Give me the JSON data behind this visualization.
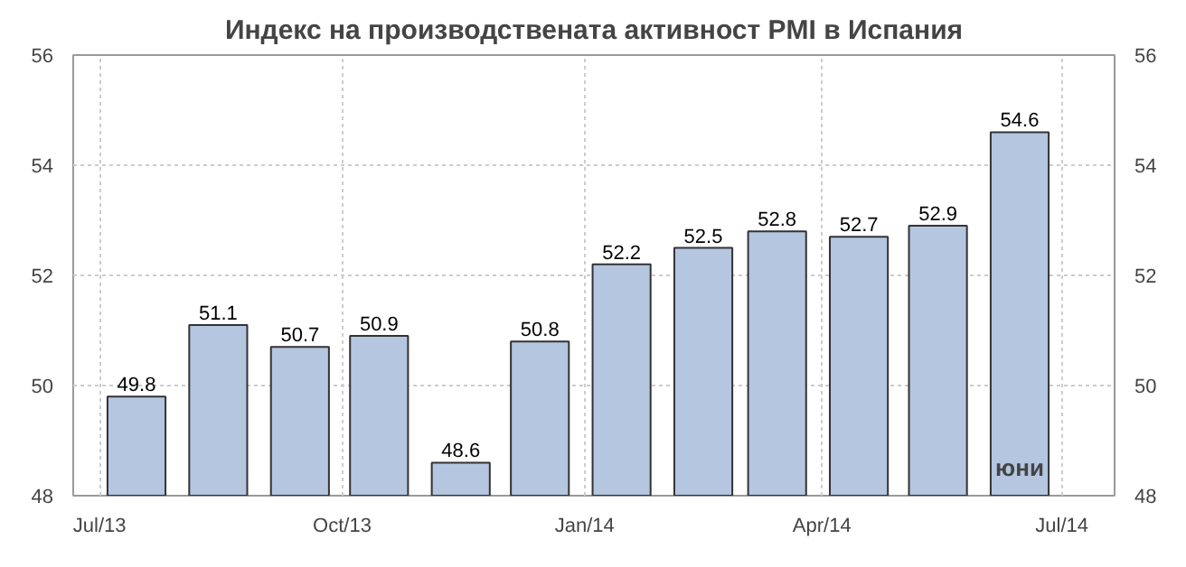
{
  "chart_data": {
    "type": "bar",
    "title": "Индекс на производствената активност PMI в Испания",
    "x": [
      "2013-07-15",
      "2013-08-15",
      "2013-09-15",
      "2013-10-15",
      "2013-11-15",
      "2013-12-15",
      "2014-01-15",
      "2014-02-15",
      "2014-03-15",
      "2014-04-15",
      "2014-05-15",
      "2014-06-15"
    ],
    "values": [
      49.8,
      51.1,
      50.7,
      50.9,
      48.6,
      50.8,
      52.2,
      52.5,
      52.8,
      52.7,
      52.9,
      54.6
    ],
    "color": "#b4c6e0",
    "data_labels": true,
    "xlim": [
      "2013-06-21",
      "2014-07-21"
    ],
    "xticks": [
      {
        "value": "2013-07-01",
        "label": "Jul/13"
      },
      {
        "value": "2013-10-01",
        "label": "Oct/13"
      },
      {
        "value": "2014-01-01",
        "label": "Jan/14"
      },
      {
        "value": "2014-04-01",
        "label": "Apr/14"
      },
      {
        "value": "2014-07-01",
        "label": "Jul/14"
      }
    ],
    "ylim": [
      48,
      56
    ],
    "yticks": [
      48,
      50,
      52,
      54,
      56
    ],
    "y2lim": [
      48,
      56
    ],
    "y2ticks": [
      48,
      50,
      52,
      54,
      56
    ],
    "grid": true,
    "annotations": [
      "юни"
    ]
  }
}
